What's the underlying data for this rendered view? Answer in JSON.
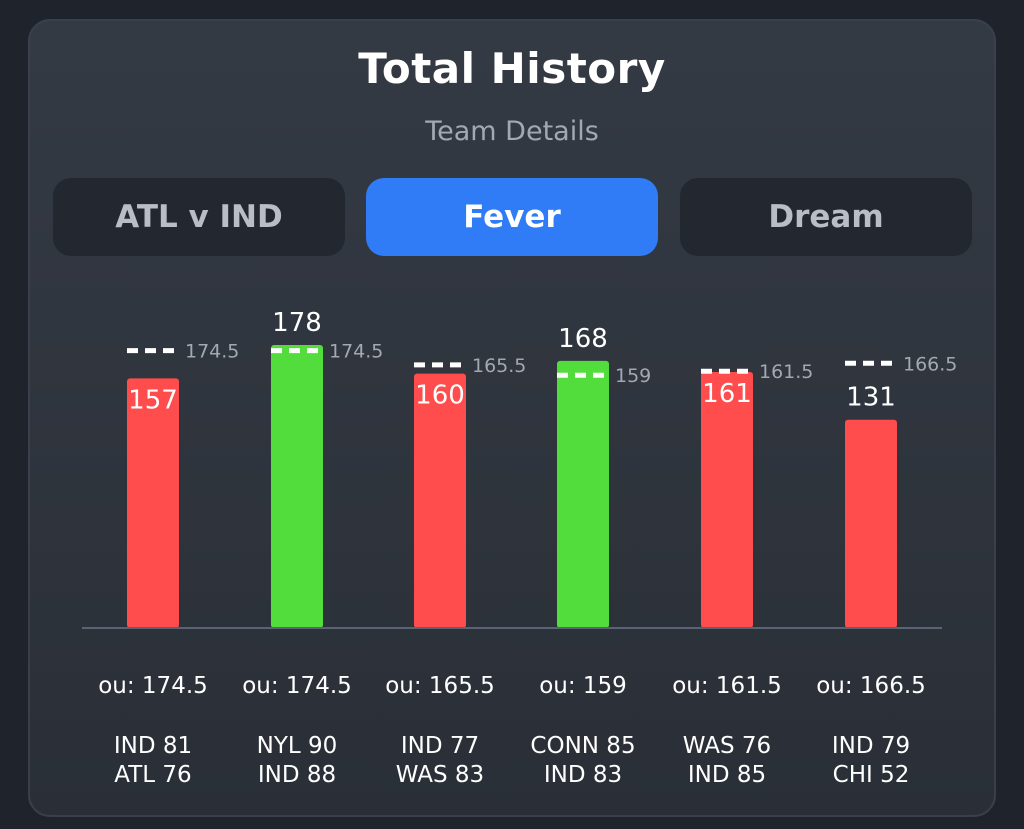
{
  "header": {
    "title": "Total History",
    "subtitle": "Team Details"
  },
  "tabs": [
    {
      "label": "ATL v IND",
      "active": false
    },
    {
      "label": "Fever",
      "active": true
    },
    {
      "label": "Dream",
      "active": false
    }
  ],
  "colors": {
    "over": "#53dd3c",
    "under": "#ff4c4c",
    "active_tab": "#2f7cf6",
    "axis": "#5b6273"
  },
  "chart_data": {
    "type": "bar",
    "categories": [
      "IND 81 ATL 76",
      "NYL 90 IND 88",
      "IND 77 WAS 83",
      "CONN 85 IND 83",
      "WAS 76 IND 85",
      "IND 79 CHI 52"
    ],
    "values": [
      157,
      178,
      160,
      168,
      161,
      131
    ],
    "ou_lines": [
      174.5,
      174.5,
      165.5,
      159,
      161.5,
      166.5
    ],
    "line_labels": [
      "174.5",
      "174.5",
      "165.5",
      "159",
      "161.5",
      "166.5"
    ],
    "ou_labels": [
      "ou: 174.5",
      "ou: 174.5",
      "ou: 165.5",
      "ou: 159",
      "ou: 161.5",
      "ou: 166.5"
    ],
    "scores": [
      [
        "IND 81",
        "ATL 76"
      ],
      [
        "NYL 90",
        "IND 88"
      ],
      [
        "IND 77",
        "WAS 83"
      ],
      [
        "CONN 85",
        "IND 83"
      ],
      [
        "WAS 76",
        "IND 85"
      ],
      [
        "IND 79",
        "CHI 52"
      ]
    ],
    "result": [
      "under",
      "over",
      "under",
      "over",
      "under",
      "under"
    ],
    "ylim": [
      0,
      178
    ]
  }
}
